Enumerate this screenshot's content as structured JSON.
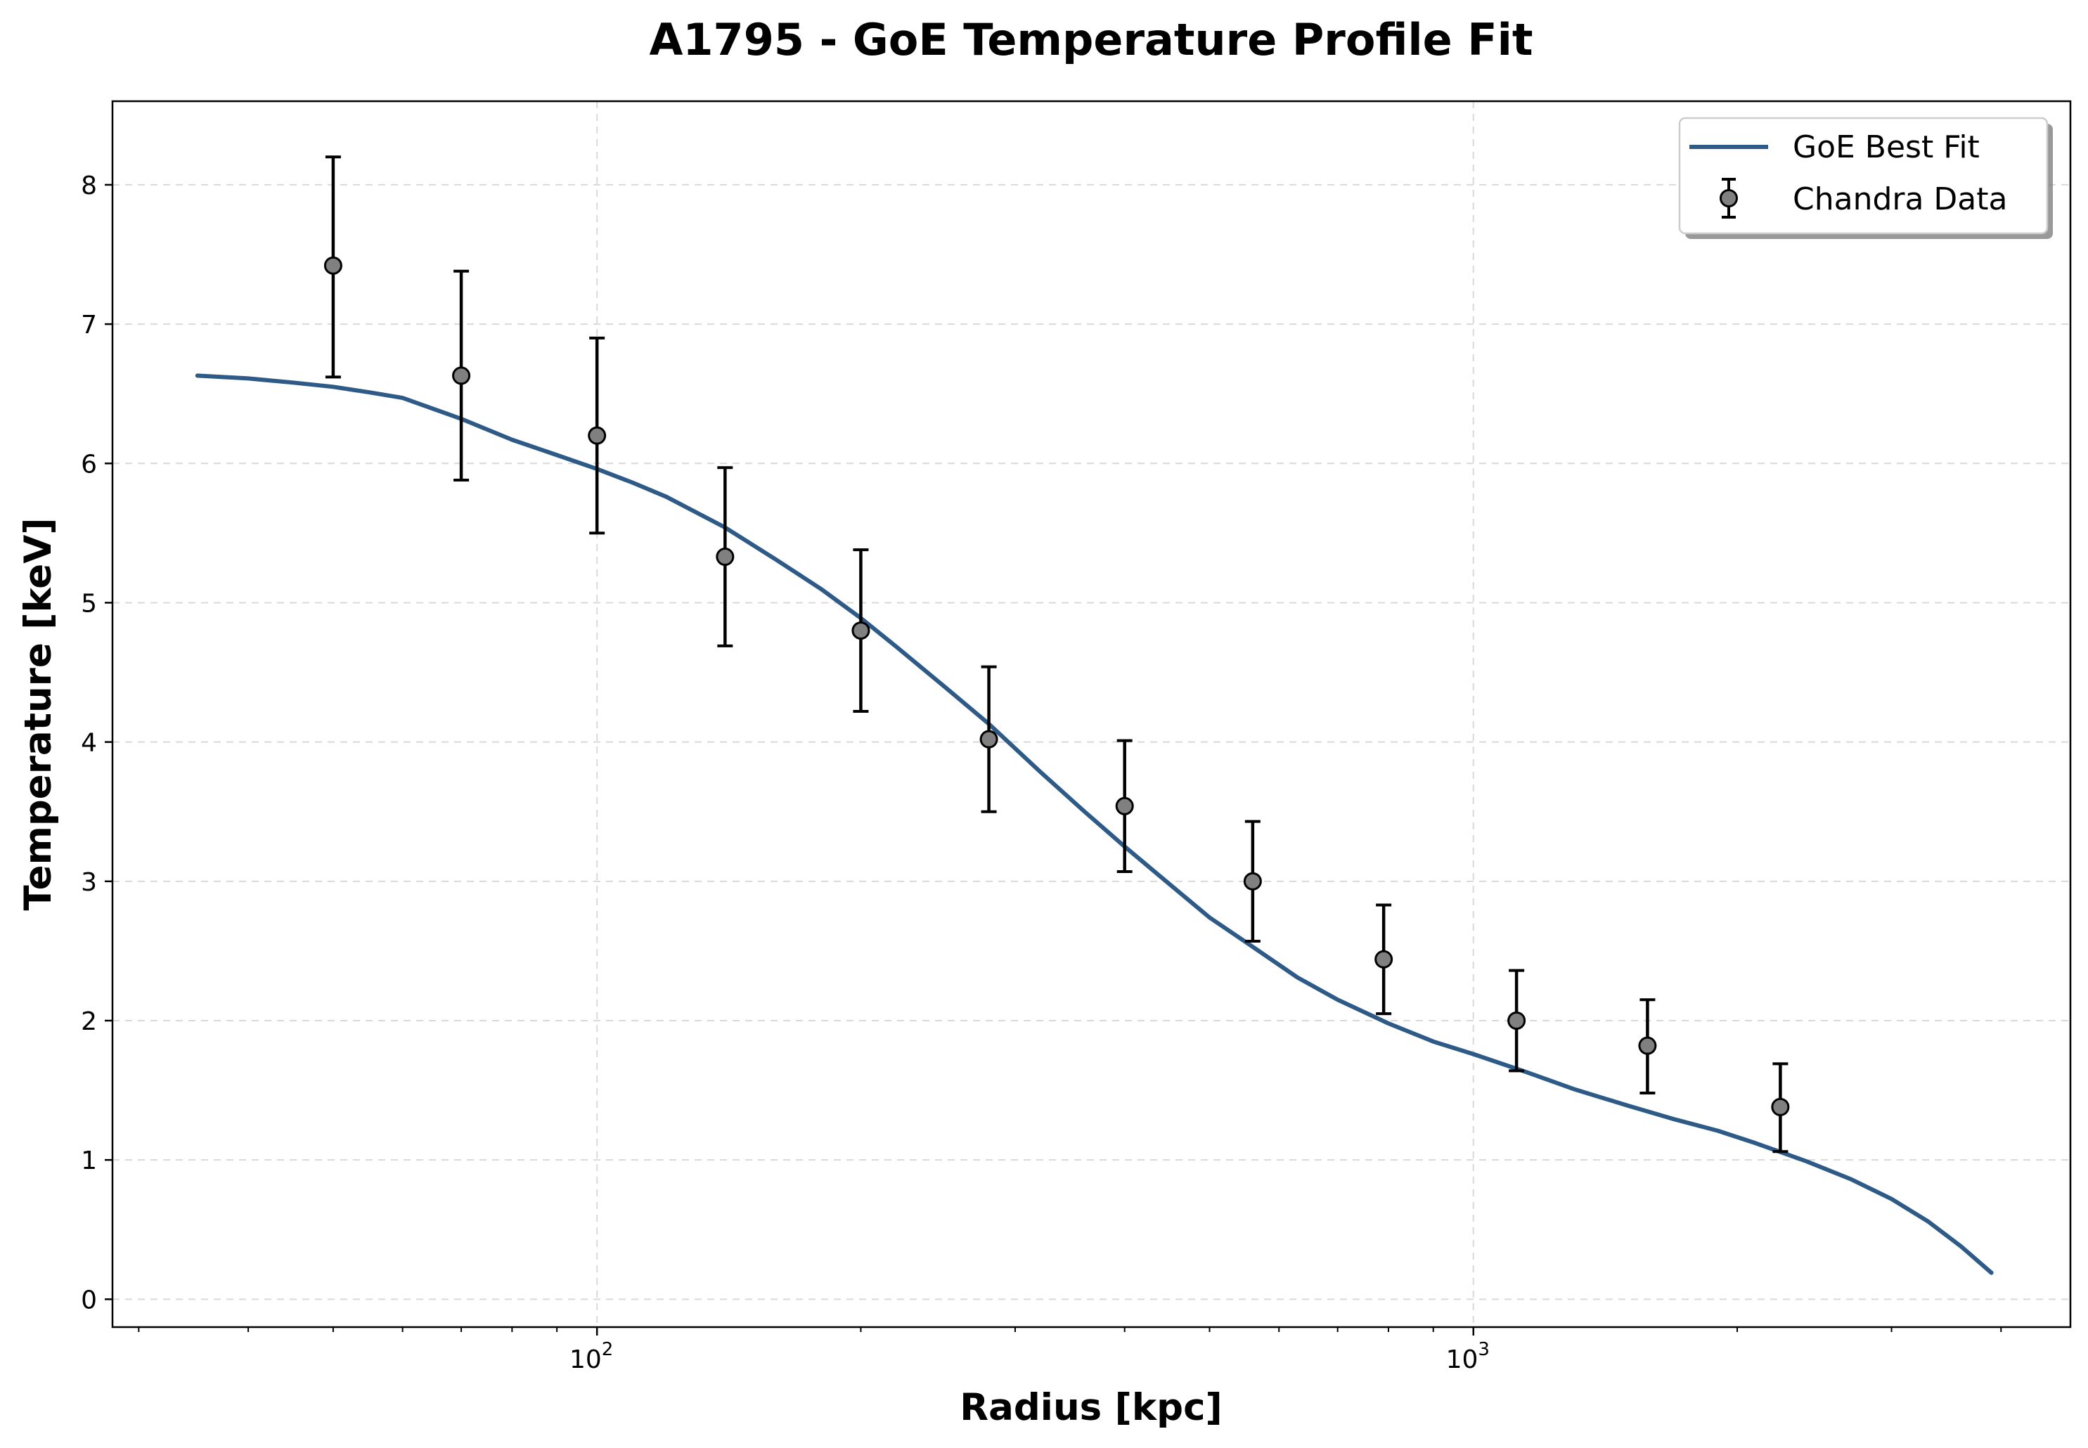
{
  "colors": {
    "fit_line": "#2e5a87",
    "marker_fill": "#808080",
    "marker_edge": "#000000",
    "errorbar": "#000000",
    "grid": "#d9d9d9"
  },
  "chart_data": {
    "type": "line",
    "title": "A1795 - GoE Temperature Profile Fit",
    "xlabel": "Radius [kpc]",
    "ylabel": "Temperature [keV]",
    "xscale": "log",
    "xlim": [
      28,
      4800
    ],
    "ylim": [
      -0.2,
      8.6
    ],
    "x_ticks": [
      {
        "value": 100,
        "base": "10",
        "exp": "2"
      },
      {
        "value": 1000,
        "base": "10",
        "exp": "3"
      }
    ],
    "y_ticks": [
      "0",
      "1",
      "2",
      "3",
      "4",
      "5",
      "6",
      "7",
      "8"
    ],
    "grid": true,
    "legend": {
      "position": "top-right",
      "entries": [
        "GoE Best Fit",
        "Chandra Data"
      ]
    },
    "series": [
      {
        "name": "GoE Best Fit",
        "kind": "line",
        "x": [
          35,
          40,
          45,
          50,
          55,
          60,
          70,
          80,
          90,
          100,
          110,
          120,
          140,
          160,
          180,
          200,
          220,
          250,
          280,
          320,
          360,
          400,
          450,
          500,
          560,
          630,
          700,
          800,
          900,
          1000,
          1150,
          1300,
          1500,
          1700,
          1900,
          2100,
          2400,
          2700,
          3000,
          3300,
          3600,
          3900
        ],
        "y": [
          6.63,
          6.61,
          6.58,
          6.55,
          6.51,
          6.47,
          6.32,
          6.17,
          6.06,
          5.96,
          5.86,
          5.76,
          5.54,
          5.31,
          5.1,
          4.89,
          4.68,
          4.39,
          4.13,
          3.79,
          3.5,
          3.25,
          2.98,
          2.74,
          2.53,
          2.31,
          2.15,
          1.98,
          1.85,
          1.76,
          1.63,
          1.51,
          1.39,
          1.29,
          1.21,
          1.12,
          0.99,
          0.86,
          0.72,
          0.56,
          0.38,
          0.19
        ]
      },
      {
        "name": "Chandra Data",
        "kind": "errorbar",
        "x": [
          50,
          70,
          100,
          140,
          200,
          280,
          400,
          560,
          790,
          1120,
          1580,
          2240
        ],
        "y": [
          7.42,
          6.63,
          6.2,
          5.33,
          4.8,
          4.02,
          3.54,
          3.0,
          2.44,
          2.0,
          1.82,
          1.38
        ],
        "err_lower": [
          0.8,
          0.75,
          0.7,
          0.64,
          0.58,
          0.52,
          0.47,
          0.43,
          0.39,
          0.36,
          0.34,
          0.32
        ],
        "err_upper": [
          0.78,
          0.75,
          0.7,
          0.64,
          0.58,
          0.52,
          0.47,
          0.43,
          0.39,
          0.36,
          0.33,
          0.31
        ]
      }
    ]
  }
}
